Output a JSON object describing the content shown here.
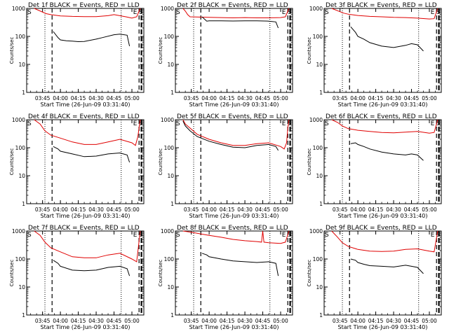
{
  "colors": {
    "events": "#000000",
    "lld": "#e00000"
  },
  "chart_data": [
    {
      "type": "line",
      "title": "Det 1f BLACK = Events, RED = LLD",
      "xlabel": "Start Time (26-Jun-09 03:31:40)",
      "ylabel": "Counts/sec",
      "x_ticks": [
        "03:45",
        "04:00",
        "04:15",
        "04:30",
        "04:45",
        "05:00"
      ],
      "y_ticks": [
        "1",
        "10",
        "100",
        "1000"
      ],
      "y_scale": "log",
      "ylim": [
        1,
        1000
      ],
      "xlim": [
        "03:31:40",
        "05:10:00"
      ],
      "markers": {
        "left": "S",
        "right": [
          "E",
          "S"
        ]
      },
      "series": [
        {
          "color": "#e00000",
          "x": [
            "03:38",
            "03:48",
            "03:52",
            "04:00",
            "04:10",
            "04:20",
            "04:30",
            "04:40",
            "04:45",
            "04:55",
            "05:00",
            "05:04",
            "05:07"
          ],
          "y": [
            1000,
            650,
            600,
            540,
            520,
            510,
            510,
            550,
            600,
            500,
            450,
            500,
            1000
          ]
        },
        {
          "color": "#000000",
          "x": [
            "03:54",
            "03:58",
            "04:00",
            "04:05",
            "04:10",
            "04:15",
            "04:20",
            "04:30",
            "04:35",
            "04:45",
            "04:50",
            "04:56",
            "04:58"
          ],
          "y": [
            150,
            90,
            75,
            70,
            68,
            65,
            66,
            80,
            90,
            115,
            120,
            110,
            45
          ]
        }
      ]
    },
    {
      "type": "line",
      "title": "Det 2f BLACK = Events, RED = LLD",
      "xlabel": "Start Time (26-Jun-09 03:31:40)",
      "ylabel": "Counts/sec",
      "x_ticks": [
        "03:45",
        "04:00",
        "04:15",
        "04:30",
        "04:45",
        "05:00"
      ],
      "y_ticks": [
        "1",
        "10",
        "100",
        "1000"
      ],
      "y_scale": "log",
      "ylim": [
        1,
        1000
      ],
      "xlim": [
        "03:31:40",
        "05:10:00"
      ],
      "markers": {
        "left": "S",
        "right": [
          "E",
          "S"
        ]
      },
      "series": [
        {
          "color": "#e00000",
          "x": [
            "03:38",
            "03:40",
            "03:42",
            "03:44",
            "04:00",
            "04:10",
            "04:20",
            "04:30",
            "04:40",
            "04:50",
            "05:00",
            "05:04",
            "05:07"
          ],
          "y": [
            1000,
            800,
            600,
            500,
            480,
            470,
            460,
            470,
            460,
            460,
            470,
            500,
            1000
          ]
        },
        {
          "color": "#000000",
          "x": [
            "03:54",
            "03:58",
            "04:00",
            "04:10",
            "04:20",
            "04:30",
            "04:40",
            "04:50",
            "04:56",
            "04:58"
          ],
          "y": [
            500,
            350,
            360,
            360,
            355,
            360,
            360,
            350,
            330,
            200
          ]
        }
      ]
    },
    {
      "type": "line",
      "title": "Det 3f BLACK = Events, RED = LLD",
      "xlabel": "Start Time (26-Jun-09 03:31:40)",
      "ylabel": "Counts/sec",
      "x_ticks": [
        "03:45",
        "04:00",
        "04:15",
        "04:30",
        "04:45",
        "05:00"
      ],
      "y_ticks": [
        "1",
        "10",
        "100",
        "1000"
      ],
      "y_scale": "log",
      "ylim": [
        1,
        1000
      ],
      "xlim": [
        "03:31:40",
        "05:10:00"
      ],
      "markers": {
        "left": "S",
        "right": [
          "E",
          "S"
        ]
      },
      "series": [
        {
          "color": "#e00000",
          "x": [
            "03:38",
            "03:48",
            "03:52",
            "04:00",
            "04:10",
            "04:20",
            "04:30",
            "04:40",
            "04:50",
            "05:00",
            "05:04",
            "05:07"
          ],
          "y": [
            1000,
            680,
            620,
            560,
            520,
            500,
            480,
            470,
            450,
            420,
            430,
            1000
          ]
        },
        {
          "color": "#000000",
          "x": [
            "03:54",
            "03:58",
            "04:00",
            "04:05",
            "04:10",
            "04:20",
            "04:30",
            "04:40",
            "04:45",
            "04:50",
            "04:55"
          ],
          "y": [
            220,
            140,
            100,
            80,
            60,
            45,
            40,
            48,
            55,
            50,
            30
          ]
        }
      ]
    },
    {
      "type": "line",
      "title": "Det 4f BLACK = Events, RED = LLD",
      "xlabel": "Start Time (26-Jun-09 03:31:40)",
      "ylabel": "Counts/sec",
      "x_ticks": [
        "03:45",
        "04:00",
        "04:15",
        "04:30",
        "04:45",
        "05:00"
      ],
      "y_ticks": [
        "1",
        "10",
        "100",
        "1000"
      ],
      "y_scale": "log",
      "ylim": [
        1,
        1000
      ],
      "xlim": [
        "03:31:40",
        "05:10:00"
      ],
      "markers": {
        "left": "S",
        "right": [
          "E",
          "S"
        ]
      },
      "series": [
        {
          "color": "#e00000",
          "x": [
            "03:38",
            "03:43",
            "03:47",
            "03:52",
            "04:00",
            "04:10",
            "04:20",
            "04:30",
            "04:40",
            "04:50",
            "05:00",
            "05:03",
            "05:05",
            "05:07"
          ],
          "y": [
            1000,
            700,
            400,
            280,
            220,
            160,
            130,
            130,
            160,
            200,
            150,
            120,
            250,
            1000
          ]
        },
        {
          "color": "#000000",
          "x": [
            "03:54",
            "03:58",
            "04:00",
            "04:10",
            "04:20",
            "04:30",
            "04:40",
            "04:50",
            "04:56",
            "04:58"
          ],
          "y": [
            110,
            90,
            75,
            60,
            48,
            50,
            60,
            65,
            55,
            30
          ]
        }
      ]
    },
    {
      "type": "line",
      "title": "Det 5f BLACK = Events, RED = LLD",
      "xlabel": "Start Time (26-Jun-09 03:31:40)",
      "ylabel": "Counts/sec",
      "x_ticks": [
        "03:45",
        "04:00",
        "04:15",
        "04:30",
        "04:45",
        "05:00"
      ],
      "y_ticks": [
        "1",
        "10",
        "100",
        "1000"
      ],
      "y_scale": "log",
      "ylim": [
        1,
        1000
      ],
      "xlim": [
        "03:31:40",
        "05:10:00"
      ],
      "markers": {
        "left": "S",
        "right": [
          "E",
          "S"
        ]
      },
      "series": [
        {
          "color": "#e00000",
          "x": [
            "03:38",
            "03:40",
            "03:44",
            "03:50",
            "04:00",
            "04:10",
            "04:20",
            "04:30",
            "04:40",
            "04:50",
            "05:00",
            "05:03",
            "05:05",
            "05:06",
            "05:07"
          ],
          "y": [
            1000,
            700,
            500,
            300,
            200,
            150,
            120,
            120,
            140,
            150,
            110,
            90,
            150,
            500,
            1000
          ]
        },
        {
          "color": "#000000",
          "x": [
            "03:38",
            "03:40",
            "03:44",
            "03:50",
            "04:00",
            "04:10",
            "04:20",
            "04:30",
            "04:40",
            "04:50",
            "04:56",
            "04:58"
          ],
          "y": [
            900,
            600,
            400,
            250,
            170,
            130,
            105,
            100,
            120,
            130,
            110,
            80
          ]
        }
      ]
    },
    {
      "type": "line",
      "title": "Det 6f BLACK = Events, RED = LLD",
      "xlabel": "Start Time (26-Jun-09 03:31:40)",
      "ylabel": "Counts/sec",
      "x_ticks": [
        "03:45",
        "04:00",
        "04:15",
        "04:30",
        "04:45",
        "05:00"
      ],
      "y_ticks": [
        "1",
        "10",
        "100",
        "1000"
      ],
      "y_scale": "log",
      "ylim": [
        1,
        1000
      ],
      "xlim": [
        "03:31:40",
        "05:10:00"
      ],
      "markers": {
        "left": "S",
        "right": [
          "E",
          "S"
        ]
      },
      "series": [
        {
          "color": "#e00000",
          "x": [
            "03:38",
            "03:43",
            "03:47",
            "03:52",
            "04:00",
            "04:10",
            "04:20",
            "04:30",
            "04:40",
            "04:50",
            "05:00",
            "05:04",
            "05:07"
          ],
          "y": [
            1000,
            800,
            600,
            480,
            420,
            380,
            350,
            340,
            360,
            380,
            330,
            350,
            1000
          ]
        },
        {
          "color": "#000000",
          "x": [
            "03:54",
            "03:58",
            "04:00",
            "04:05",
            "04:10",
            "04:20",
            "04:30",
            "04:40",
            "04:45",
            "04:50",
            "04:55"
          ],
          "y": [
            140,
            150,
            130,
            110,
            90,
            70,
            60,
            55,
            60,
            55,
            35
          ]
        }
      ]
    },
    {
      "type": "line",
      "title": "Det 7f BLACK = Events, RED = LLD",
      "xlabel": "Start Time (26-Jun-09 03:31:40)",
      "ylabel": "Counts/sec",
      "x_ticks": [
        "03:45",
        "04:00",
        "04:15",
        "04:30",
        "04:45",
        "05:00"
      ],
      "y_ticks": [
        "1",
        "10",
        "100",
        "1000"
      ],
      "y_scale": "log",
      "ylim": [
        1,
        1000
      ],
      "xlim": [
        "03:31:40",
        "05:10:00"
      ],
      "markers": {
        "left": "S",
        "right": [
          "E",
          "S"
        ]
      },
      "series": [
        {
          "color": "#e00000",
          "x": [
            "03:38",
            "03:43",
            "03:47",
            "03:52",
            "04:00",
            "04:10",
            "04:20",
            "04:30",
            "04:40",
            "04:50",
            "05:00",
            "05:04",
            "05:07"
          ],
          "y": [
            1000,
            700,
            400,
            250,
            180,
            120,
            110,
            110,
            140,
            160,
            100,
            80,
            1000
          ]
        },
        {
          "color": "#000000",
          "x": [
            "03:54",
            "03:58",
            "04:00",
            "04:10",
            "04:20",
            "04:30",
            "04:40",
            "04:50",
            "04:56",
            "04:58"
          ],
          "y": [
            90,
            70,
            55,
            40,
            38,
            40,
            50,
            55,
            45,
            25
          ]
        }
      ]
    },
    {
      "type": "line",
      "title": "Det 8f BLACK = Events, RED = LLD",
      "xlabel": "Start Time (26-Jun-09 03:31:40)",
      "ylabel": "Counts/sec",
      "x_ticks": [
        "03:45",
        "04:00",
        "04:15",
        "04:30",
        "04:45",
        "05:00"
      ],
      "y_ticks": [
        "1",
        "10",
        "100",
        "1000"
      ],
      "y_scale": "log",
      "ylim": [
        1,
        1000
      ],
      "xlim": [
        "03:31:40",
        "05:10:00"
      ],
      "markers": {
        "left": "S",
        "right": [
          "E",
          "S"
        ]
      },
      "series": [
        {
          "color": "#e00000",
          "x": [
            "03:38",
            "03:45",
            "03:52",
            "04:00",
            "04:10",
            "04:20",
            "04:30",
            "04:40",
            "04:44",
            "04:45",
            "04:46",
            "04:50",
            "05:00",
            "05:04",
            "05:07"
          ],
          "y": [
            1000,
            900,
            800,
            700,
            600,
            500,
            450,
            420,
            400,
            1000,
            400,
            380,
            360,
            400,
            1000
          ]
        },
        {
          "color": "#000000",
          "x": [
            "03:54",
            "03:58",
            "04:00",
            "04:10",
            "04:20",
            "04:30",
            "04:40",
            "04:50",
            "04:56",
            "04:58"
          ],
          "y": [
            160,
            140,
            120,
            100,
            85,
            80,
            75,
            80,
            70,
            25
          ]
        }
      ]
    },
    {
      "type": "line",
      "title": "Det 9f BLACK = Events, RED = LLD",
      "xlabel": "Start Time (26-Jun-09 03:31:40)",
      "ylabel": "Counts/sec",
      "x_ticks": [
        "03:45",
        "04:00",
        "04:15",
        "04:30",
        "04:45",
        "05:00"
      ],
      "y_ticks": [
        "1",
        "10",
        "100",
        "1000"
      ],
      "y_scale": "log",
      "ylim": [
        1,
        1000
      ],
      "xlim": [
        "03:31:40",
        "05:10:00"
      ],
      "markers": {
        "left": "S",
        "right": [
          "E",
          "S"
        ]
      },
      "series": [
        {
          "color": "#e00000",
          "x": [
            "03:38",
            "03:43",
            "03:47",
            "03:52",
            "04:00",
            "04:10",
            "04:20",
            "04:30",
            "04:40",
            "04:50",
            "05:00",
            "05:04",
            "05:07"
          ],
          "y": [
            1000,
            600,
            380,
            280,
            220,
            190,
            185,
            190,
            220,
            230,
            190,
            180,
            1000
          ]
        },
        {
          "color": "#000000",
          "x": [
            "03:54",
            "03:58",
            "04:00",
            "04:05",
            "04:10",
            "04:20",
            "04:30",
            "04:40",
            "04:45",
            "04:50",
            "04:55"
          ],
          "y": [
            100,
            90,
            75,
            65,
            58,
            55,
            52,
            60,
            55,
            50,
            30
          ]
        }
      ]
    }
  ]
}
